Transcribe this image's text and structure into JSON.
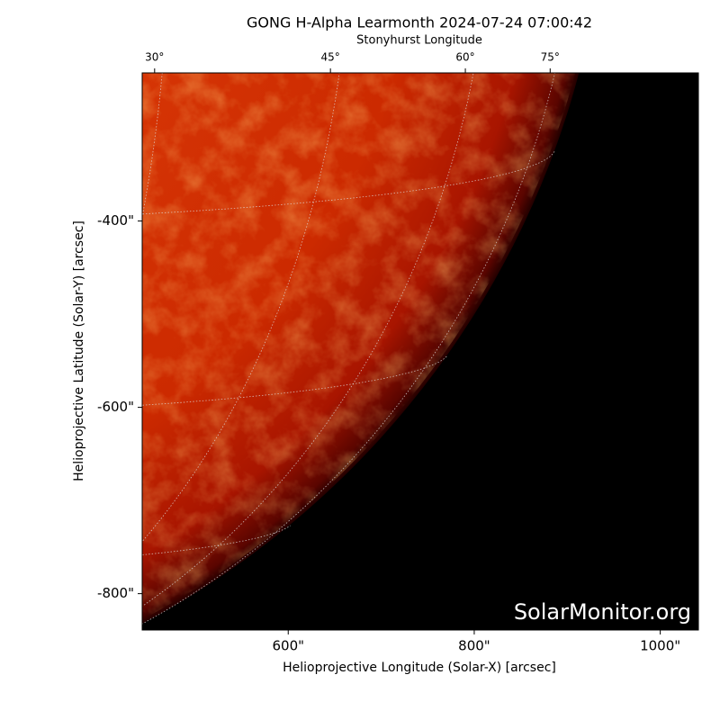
{
  "chart_data": {
    "type": "image",
    "title": "GONG H-Alpha Learmonth 2024-07-24 07:00:42",
    "x_label": "Helioprojective Longitude (Solar-X) [arcsec]",
    "y_label": "Helioprojective Latitude (Solar-Y) [arcsec]",
    "x2_label": "Stonyhurst Longitude",
    "watermark": "SolarMonitor.org",
    "xlim": [
      443,
      1041
    ],
    "ylim": [
      -839,
      -241
    ],
    "xticks": [
      {
        "value": 600,
        "label": "600\""
      },
      {
        "value": 800,
        "label": "800\""
      },
      {
        "value": 1000,
        "label": "1000\""
      }
    ],
    "yticks": [
      {
        "value": -400,
        "label": "-400\""
      },
      {
        "value": -600,
        "label": "-600\""
      },
      {
        "value": -800,
        "label": "-800\""
      }
    ],
    "x2ticks": [
      {
        "value": 30,
        "label": "30°"
      },
      {
        "value": 45,
        "label": "45°"
      },
      {
        "value": 60,
        "label": "60°"
      },
      {
        "value": 75,
        "label": "75°"
      }
    ]
  }
}
